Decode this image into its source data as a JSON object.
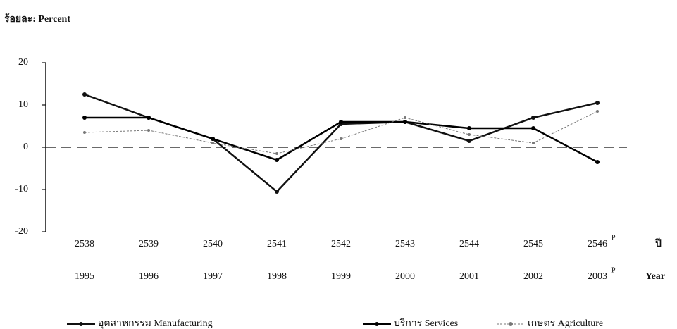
{
  "chart_data": {
    "type": "line",
    "y_label": "ร้อยละ: Percent",
    "x_label_thai": "ปี",
    "x_label": "Year",
    "categories": [
      "2538",
      "2539",
      "2540",
      "2541",
      "2542",
      "2543",
      "2544",
      "2545",
      "2546"
    ],
    "categories_secondary": [
      "1995",
      "1996",
      "1997",
      "1998",
      "1999",
      "2000",
      "2001",
      "2002",
      "2003"
    ],
    "preliminary_mark": "P",
    "ylim": [
      -20,
      20
    ],
    "yticks": [
      -20,
      -10,
      0,
      10,
      20
    ],
    "zero_line": true,
    "series": [
      {
        "name": "อุตสาหกรรม  Manufacturing",
        "color": "#111111",
        "values": [
          12.5,
          7,
          2,
          -10.5,
          5.5,
          6,
          1.5,
          7,
          10.5
        ]
      },
      {
        "name": "บริการ  Services",
        "color": "#000000",
        "values": [
          7,
          7,
          2,
          -3,
          6,
          6,
          4.5,
          4.5,
          -3.5
        ]
      },
      {
        "name": "เกษตร  Agriculture",
        "color": "#777777",
        "values": [
          3.5,
          4,
          1,
          -1.5,
          2,
          7,
          3,
          1,
          8.5
        ]
      }
    ]
  }
}
